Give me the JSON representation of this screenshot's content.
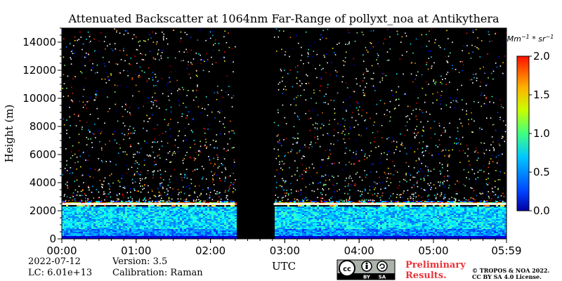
{
  "chart_data": {
    "type": "heatmap",
    "title": "Attenuated Backscatter at 1064nm Far-Range of pollyxt_noa at Antikythera",
    "xlabel": "UTC",
    "ylabel": "Height (m)",
    "x_tick_labels": [
      "00:00",
      "01:00",
      "02:00",
      "03:00",
      "04:00",
      "05:00",
      "05:59"
    ],
    "x_ticks_hours": [
      0,
      1,
      2,
      3,
      4,
      5,
      5.983
    ],
    "xlim_hours": [
      0,
      5.983
    ],
    "y_ticks": [
      0,
      2000,
      4000,
      6000,
      8000,
      10000,
      12000,
      14000
    ],
    "ylim": [
      0,
      15000
    ],
    "colorbar": {
      "label": "Mm^-1 * sr^-1",
      "ticks": [
        "0.0",
        "0.5",
        "1.0",
        "1.5",
        "2.0"
      ],
      "tick_values": [
        0,
        0.5,
        1.0,
        1.5,
        2.0
      ],
      "range": [
        0,
        2.0
      ],
      "colormap": "jet"
    },
    "no_data_gap_hours": [
      2.33,
      2.85
    ],
    "layers": [
      {
        "feature": "boundary layer",
        "height_range_m": [
          0,
          2500
        ],
        "typical_value": 0.6
      },
      {
        "feature": "strong aerosol top",
        "height_m": 2500,
        "typical_value": 2.0
      },
      {
        "feature": "near-surface",
        "height_range_m": [
          0,
          300
        ],
        "typical_value": 0.1
      }
    ]
  },
  "meta": {
    "date": "2022-07-12",
    "version": "Version: 3.5",
    "lc": "LC: 6.01e+13",
    "calibration": "Calibration: Raman"
  },
  "license": {
    "badge": [
      "cc",
      "BY",
      "SA"
    ],
    "preliminary_line1": "Preliminary",
    "preliminary_line2": "Results.",
    "copyright_line1": "© TROPOS & NOA 2022.",
    "copyright_line2": "CC BY SA 4.0 License."
  },
  "colors": {
    "plot_background": "#000000",
    "preliminary_text": "#e8343a"
  }
}
